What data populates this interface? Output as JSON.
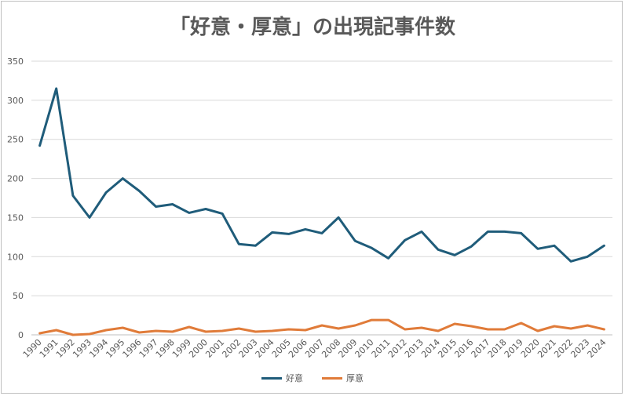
{
  "chart_data": {
    "type": "line",
    "title": "「好意・厚意」の出現記事件数",
    "x": [
      1990,
      1991,
      1992,
      1993,
      1994,
      1995,
      1996,
      1997,
      1998,
      1999,
      2000,
      2001,
      2002,
      2003,
      2004,
      2005,
      2006,
      2007,
      2008,
      2009,
      2010,
      2011,
      2012,
      2013,
      2014,
      2015,
      2016,
      2017,
      2018,
      2019,
      2020,
      2021,
      2022,
      2023,
      2024
    ],
    "ylim": [
      0,
      350
    ],
    "yticks": [
      0,
      50,
      100,
      150,
      200,
      250,
      300,
      350
    ],
    "grid": true,
    "legend_position": "bottom",
    "series": [
      {
        "name": "好意",
        "color": "#1f5c7a",
        "values": [
          242,
          315,
          178,
          150,
          182,
          200,
          184,
          164,
          167,
          156,
          161,
          155,
          116,
          114,
          131,
          129,
          135,
          130,
          150,
          120,
          111,
          98,
          121,
          132,
          109,
          102,
          113,
          132,
          132,
          130,
          110,
          114,
          94,
          100,
          114
        ]
      },
      {
        "name": "厚意",
        "color": "#e07b39",
        "values": [
          2,
          6,
          0,
          1,
          6,
          9,
          3,
          5,
          4,
          10,
          4,
          5,
          8,
          4,
          5,
          7,
          6,
          12,
          8,
          12,
          19,
          19,
          7,
          9,
          5,
          14,
          11,
          7,
          7,
          15,
          5,
          11,
          8,
          12,
          7
        ]
      }
    ]
  }
}
